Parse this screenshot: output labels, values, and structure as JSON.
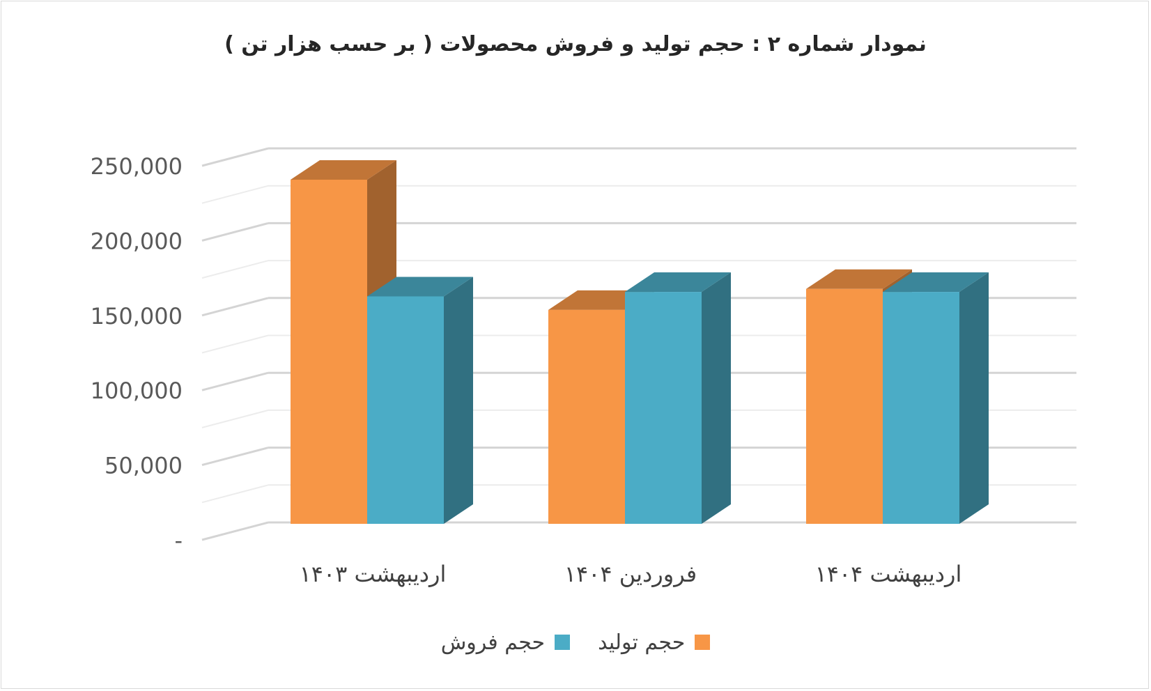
{
  "chart_data": {
    "type": "bar",
    "title": "نمودار شماره ۲ : حجم  تولید و فروش محصولات ( بر حسب هزار تن )",
    "categories": [
      "اردیبهشت ۱۴۰۳",
      "فروردین ۱۴۰۴",
      "اردیبهشت ۱۴۰۴"
    ],
    "series": [
      {
        "name": "حجم تولید",
        "values": [
          230000,
          143000,
          157000
        ],
        "color": "#f79646"
      },
      {
        "name": "حجم فروش",
        "values": [
          152000,
          155000,
          155000
        ],
        "color": "#4bacc6"
      }
    ],
    "ylim": [
      0,
      250000
    ],
    "yticks": [
      0,
      50000,
      100000,
      150000,
      200000,
      250000
    ],
    "ytick_labels": [
      "-",
      "50,000",
      "100,000",
      "150,000",
      "200,000",
      "250,000"
    ],
    "grid": true,
    "legend_position": "bottom",
    "style": "3d-clustered-column"
  }
}
